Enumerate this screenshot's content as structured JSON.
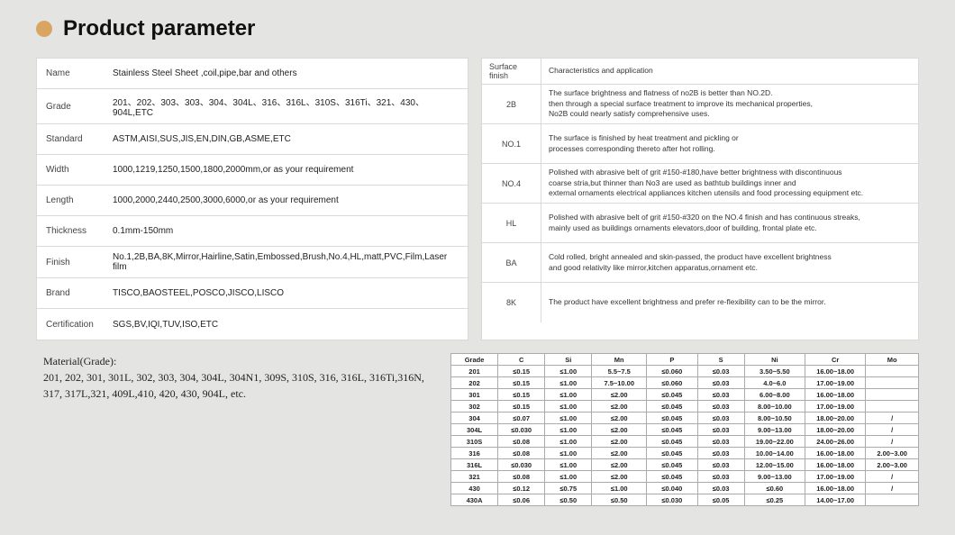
{
  "title": "Product parameter",
  "specs": [
    {
      "label": "Name",
      "value": "Stainless Steel Sheet ,coil,pipe,bar and others"
    },
    {
      "label": "Grade",
      "value": "201、202、303、303、304、304L、316、316L、310S、316Ti、321、430、904L,ETC"
    },
    {
      "label": "Standard",
      "value": "ASTM,AISI,SUS,JIS,EN,DIN,GB,ASME,ETC"
    },
    {
      "label": "Width",
      "value": "1000,1219,1250,1500,1800,2000mm,or as your requirement"
    },
    {
      "label": "Length",
      "value": "1000,2000,2440,2500,3000,6000,or as your requirement"
    },
    {
      "label": "Thickness",
      "value": "0.1mm-150mm"
    },
    {
      "label": "Finish",
      "value": "No.1,2B,BA,8K,Mirror,Hairline,Satin,Embossed,Brush,No.4,HL,matt,PVC,Film,Laser film"
    },
    {
      "label": "Brand",
      "value": "TISCO,BAOSTEEL,POSCO,JISCO,LISCO"
    },
    {
      "label": "Certification",
      "value": "SGS,BV,IQI,TUV,ISO,ETC"
    }
  ],
  "surface_header": {
    "label": "Surface finish",
    "value": "Characteristics and application"
  },
  "surface": [
    {
      "label": "2B",
      "value": "The surface brightness and flatness of no2B is better than NO.2D.\n  then through a special surface treatment to improve its mechanical properties,\nNo2B could nearly satisfy comprehensive uses."
    },
    {
      "label": "NO.1",
      "value": "The surface is finished by heat treatment and pickling or\nprocesses corresponding thereto after hot rolling."
    },
    {
      "label": "NO.4",
      "value": "Polished with abrasive belt of grit #150-#180,have better brightness with discontinuous\ncoarse stria,but thinner than No3 are used as bathtub buildings inner and\nexternal ornaments electrical appliances kitchen utensils and food processing equipment etc."
    },
    {
      "label": "HL",
      "value": "Polished with abrasive belt of grit #150-#320 on the NO.4 finish and has continuous streaks,\n mainly used as buildings ornaments elevators,door of building, frontal plate etc."
    },
    {
      "label": "BA",
      "value": "Cold rolled, bright annealed and skin-passed, the product have excellent brightness\nand good relativity like mirror,kitchen apparatus,ornament etc."
    },
    {
      "label": "8K",
      "value": "The product have excellent brightness and prefer re-flexibility can to be the mirror."
    }
  ],
  "material_heading": "Material(Grade):",
  "material_body": "201, 202, 301, 301L, 302, 303, 304, 304L, 304N1, 309S, 310S, 316, 316L, 316Ti,316N, 317, 317L,321, 409L,410, 420, 430, 904L, etc.",
  "comp": {
    "columns": [
      "Grade",
      "C",
      "Si",
      "Mn",
      "P",
      "S",
      "Ni",
      "Cr",
      "Mo"
    ],
    "rows": [
      [
        "201",
        "≤0.15",
        "≤1.00",
        "5.5~7.5",
        "≤0.060",
        "≤0.03",
        "3.50~5.50",
        "16.00~18.00",
        ""
      ],
      [
        "202",
        "≤0.15",
        "≤1.00",
        "7.5~10.00",
        "≤0.060",
        "≤0.03",
        "4.0~6.0",
        "17.00~19.00",
        ""
      ],
      [
        "301",
        "≤0.15",
        "≤1.00",
        "≤2.00",
        "≤0.045",
        "≤0.03",
        "6.00~8.00",
        "16.00~18.00",
        ""
      ],
      [
        "302",
        "≤0.15",
        "≤1.00",
        "≤2.00",
        "≤0.045",
        "≤0.03",
        "8.00~10.00",
        "17.00~19.00",
        ""
      ],
      [
        "304",
        "≤0.07",
        "≤1.00",
        "≤2.00",
        "≤0.045",
        "≤0.03",
        "8.00~10.50",
        "18.00~20.00",
        "/"
      ],
      [
        "304L",
        "≤0.030",
        "≤1.00",
        "≤2.00",
        "≤0.045",
        "≤0.03",
        "9.00~13.00",
        "18.00~20.00",
        "/"
      ],
      [
        "310S",
        "≤0.08",
        "≤1.00",
        "≤2.00",
        "≤0.045",
        "≤0.03",
        "19.00~22.00",
        "24.00~26.00",
        "/"
      ],
      [
        "316",
        "≤0.08",
        "≤1.00",
        "≤2.00",
        "≤0.045",
        "≤0.03",
        "10.00~14.00",
        "16.00~18.00",
        "2.00~3.00"
      ],
      [
        "316L",
        "≤0.030",
        "≤1.00",
        "≤2.00",
        "≤0.045",
        "≤0.03",
        "12.00~15.00",
        "16.00~18.00",
        "2.00~3.00"
      ],
      [
        "321",
        "≤0.08",
        "≤1.00",
        "≤2.00",
        "≤0.045",
        "≤0.03",
        "9.00~13.00",
        "17.00~19.00",
        "/"
      ],
      [
        "430",
        "≤0.12",
        "≤0.75",
        "≤1.00",
        "≤0.040",
        "≤0.03",
        "≤0.60",
        "16.00~18.00",
        "/"
      ],
      [
        "430A",
        "≤0.06",
        "≤0.50",
        "≤0.50",
        "≤0.030",
        "≤0.05",
        "≤0.25",
        "14.00~17.00",
        ""
      ]
    ],
    "col_widths": [
      "48px",
      "48px",
      "48px",
      "56px",
      "52px",
      "48px",
      "62px",
      "62px",
      "54px"
    ]
  },
  "colors": {
    "page_bg": "#e4e4e3",
    "table_bg": "#ffffff",
    "border": "#d9d9d9",
    "bullet": "#d8a661",
    "text": "#333333"
  }
}
